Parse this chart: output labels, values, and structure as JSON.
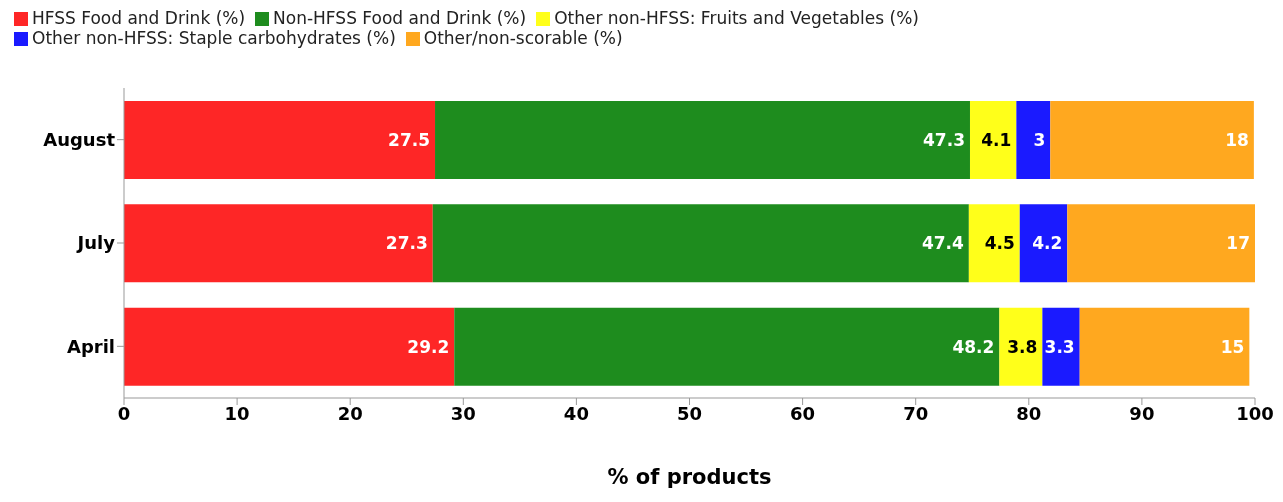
{
  "chart_data": {
    "type": "bar",
    "orientation": "horizontal",
    "stacked": true,
    "xlabel": "% of products",
    "categories": [
      "August",
      "July",
      "April"
    ],
    "series": [
      {
        "name": "HFSS Food and Drink (%)",
        "color": "#fe2626",
        "values": [
          27.5,
          27.3,
          29.2
        ]
      },
      {
        "name": "Non-HFSS Food and Drink (%)",
        "color": "#1e8c1e",
        "values": [
          47.3,
          47.4,
          48.2
        ]
      },
      {
        "name": "Other non-HFSS: Fruits and Vegetables (%)",
        "color": "#ffff1a",
        "values": [
          4.1,
          4.5,
          3.8
        ]
      },
      {
        "name": "Other non-HFSS: Staple carbohydrates (%)",
        "color": "#1a1aff",
        "values": [
          3,
          4.2,
          3.3
        ]
      },
      {
        "name": "Other/non-scorable (%)",
        "color": "#ffa81f",
        "values": [
          18,
          17,
          15
        ]
      }
    ],
    "xlim": [
      0,
      100
    ],
    "xticks": [
      0,
      10,
      20,
      30,
      40,
      50,
      60,
      70,
      80,
      90,
      100
    ],
    "data_labels": true,
    "legend": "top left",
    "grid": false
  }
}
